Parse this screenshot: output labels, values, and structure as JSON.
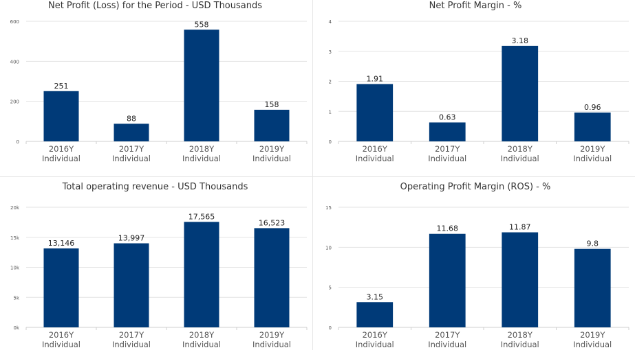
{
  "bar_color": "#003a78",
  "chart_data": [
    {
      "type": "bar",
      "title": "Net Profit (Loss) for the Period - USD Thousands",
      "categories": [
        [
          "2016Y",
          "Individual"
        ],
        [
          "2017Y",
          "Individual"
        ],
        [
          "2018Y",
          "Individual"
        ],
        [
          "2019Y",
          "Individual"
        ]
      ],
      "values": [
        251,
        88,
        558,
        158
      ],
      "data_labels": [
        "251",
        "88",
        "558",
        "158"
      ],
      "ylim": [
        0,
        600
      ],
      "yticks": [
        0,
        200,
        400,
        600
      ],
      "ytick_labels": [
        "0",
        "200",
        "400",
        "600"
      ],
      "grid": true,
      "legend": "none"
    },
    {
      "type": "bar",
      "title": "Net Profit Margin - %",
      "categories": [
        [
          "2016Y",
          "Individual"
        ],
        [
          "2017Y",
          "Individual"
        ],
        [
          "2018Y",
          "Individual"
        ],
        [
          "2019Y",
          "Individual"
        ]
      ],
      "values": [
        1.91,
        0.63,
        3.18,
        0.96
      ],
      "data_labels": [
        "1.91",
        "0.63",
        "3.18",
        "0.96"
      ],
      "ylim": [
        0,
        4
      ],
      "yticks": [
        0,
        1,
        2,
        3,
        4
      ],
      "ytick_labels": [
        "0",
        "1",
        "2",
        "3",
        "4"
      ],
      "grid": true,
      "legend": "none"
    },
    {
      "type": "bar",
      "title": "Total operating revenue - USD Thousands",
      "categories": [
        [
          "2016Y",
          "Individual"
        ],
        [
          "2017Y",
          "Individual"
        ],
        [
          "2018Y",
          "Individual"
        ],
        [
          "2019Y",
          "Individual"
        ]
      ],
      "values": [
        13146,
        13997,
        17565,
        16523
      ],
      "data_labels": [
        "13,146",
        "13,997",
        "17,565",
        "16,523"
      ],
      "ylim": [
        0,
        20000
      ],
      "yticks": [
        0,
        5000,
        10000,
        15000,
        20000
      ],
      "ytick_labels": [
        "0k",
        "5k",
        "10k",
        "15k",
        "20k"
      ],
      "grid": true,
      "legend": "none"
    },
    {
      "type": "bar",
      "title": "Operating Profit Margin (ROS) - %",
      "categories": [
        [
          "2016Y",
          "Individual"
        ],
        [
          "2017Y",
          "Individual"
        ],
        [
          "2018Y",
          "Individual"
        ],
        [
          "2019Y",
          "Individual"
        ]
      ],
      "values": [
        3.15,
        11.68,
        11.87,
        9.8
      ],
      "data_labels": [
        "3.15",
        "11.68",
        "11.87",
        "9.8"
      ],
      "ylim": [
        0,
        15
      ],
      "yticks": [
        0,
        5,
        10,
        15
      ],
      "ytick_labels": [
        "0",
        "5",
        "10",
        "15"
      ],
      "grid": true,
      "legend": "none"
    }
  ]
}
